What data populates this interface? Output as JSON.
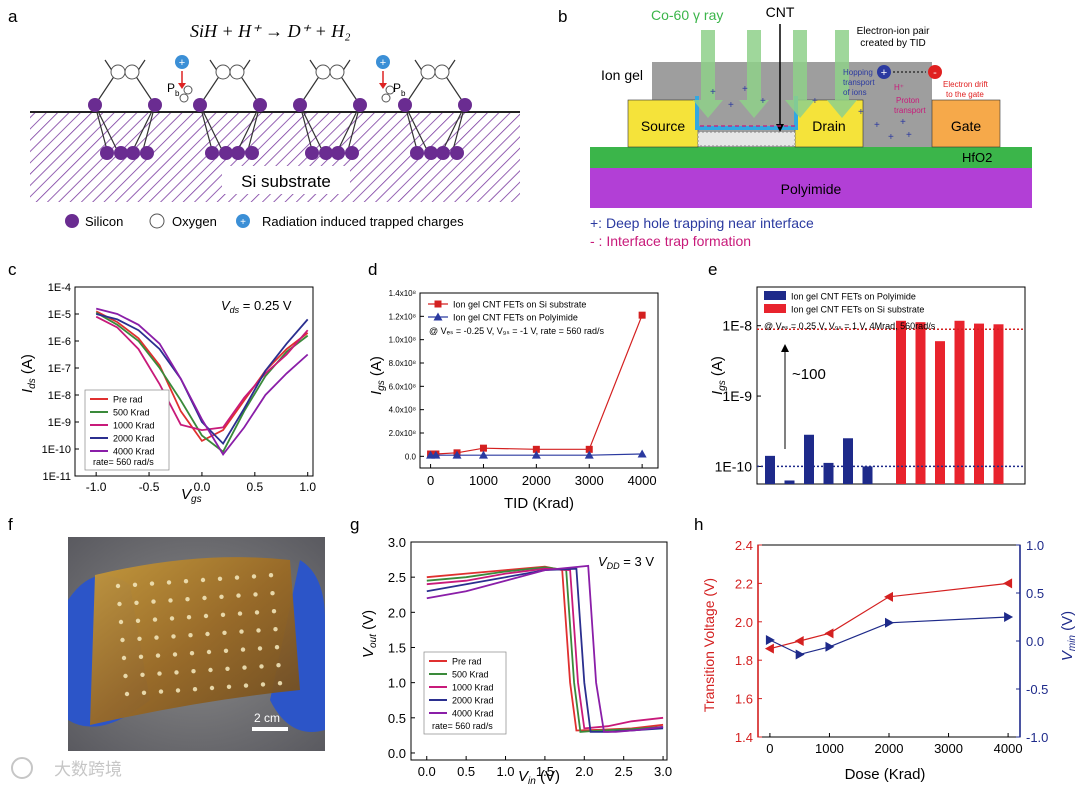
{
  "panels": {
    "a": {
      "letter": "a",
      "equation": "SiH + H⁺ → D⁺ + H₂",
      "pb_label": "P",
      "pb_sub": "b",
      "substrate_label": "Si substrate",
      "legend": [
        "Silicon",
        "Oxygen",
        "Radiation induced trapped charges"
      ],
      "colors": {
        "silicon": "#6a2c91",
        "oxygen": "#ffffff",
        "charge": "#3b8fd6"
      }
    },
    "b": {
      "letter": "b",
      "co60": "Co-60 γ ray",
      "cnt": "CNT",
      "pair_line1": "Electron-ion pair",
      "pair_line2": "created by TID",
      "ion_gel": "Ion gel",
      "source": "Source",
      "drain": "Drain",
      "gate": "Gate",
      "hfo2": "HfO2",
      "polyimide": "Polyimide",
      "hopping1": "Hopping",
      "hopping2": "transport",
      "hopping3": "of ions",
      "hplus": "H⁺",
      "proton1": "Proton",
      "proton2": "transport",
      "drift1": "Electron drift",
      "drift2": "to the gate",
      "note1": "+: Deep hole trapping near interface",
      "note2": "- : Interface trap formation",
      "colors": {
        "gel": "#9e9e9e",
        "source": "#f5e33a",
        "gate": "#f6a94a",
        "hfo2": "#3bb54a",
        "polyimide": "#b23fd6",
        "ray": "#8fd18a"
      }
    },
    "c": {
      "letter": "c",
      "annotation": "V",
      "annotation_sub": "ds",
      "annotation_tail": " = 0.25 V",
      "ylabel": "I",
      "ylabel_sub": "ds",
      "ylabel_tail": " (A)",
      "xlabel": "V",
      "xlabel_sub": "gs",
      "yticks": [
        "1E-4",
        "1E-5",
        "1E-6",
        "1E-7",
        "1E-8",
        "1E-9",
        "1E-10",
        "1E-11"
      ],
      "xticks": [
        "-1.0",
        "-0.5",
        "0.0",
        "0.5",
        "1.0"
      ],
      "legend_note": "rate= 560 rad/s"
    },
    "d": {
      "letter": "d",
      "ylabel": "I",
      "ylabel_sub": "gs",
      "ylabel_tail": " (A)",
      "xlabel": "TID (Krad)",
      "yticks": [
        "0.0",
        "2.0x10⁸",
        "4.0x10⁸",
        "6.0x10⁸",
        "8.0x10⁸",
        "1.0x10⁸",
        "1.2x10⁸",
        "1.4x10⁸"
      ],
      "xticks": [
        "0",
        "1000",
        "2000",
        "3000",
        "4000"
      ],
      "condition": "@ Vₑₛ = -0.25 V, V₉ₛ = -1 V,  rate = 560 rad/s"
    },
    "e": {
      "letter": "e",
      "ylabel": "I",
      "ylabel_sub": "gs",
      "ylabel_tail": " (A)",
      "yticks": [
        "1E-8",
        "1E-9",
        "1E-10"
      ],
      "annotation": "~100",
      "condition": "@ Vₑₛ = 0.25 V, V₉ₛ = 1 V, 4Mrad, 560rad/s"
    },
    "f": {
      "letter": "f",
      "scale": "2 cm",
      "watermark": "大数跨境"
    },
    "g": {
      "letter": "g",
      "annotation": "V",
      "annotation_sub": "DD",
      "annotation_tail": " = 3 V",
      "ylabel": "V",
      "ylabel_sub": "out",
      "ylabel_tail": " (V)",
      "xlabel": "V",
      "xlabel_sub": "in",
      "xlabel_tail": " (V)",
      "yticks": [
        "0.0",
        "0.5",
        "1.0",
        "1.5",
        "2.0",
        "2.5",
        "3.0"
      ],
      "xticks": [
        "0.0",
        "0.5",
        "1.0",
        "1.5",
        "2.0",
        "2.5",
        "3.0"
      ],
      "legend_note": "rate= 560 rad/s"
    },
    "h": {
      "letter": "h",
      "ylabel_left": "Transition Voltage (V)",
      "ylabel_right": "V",
      "ylabel_right_sub": "min",
      "ylabel_right_tail": " (V)",
      "xlabel": "Dose (Krad)",
      "yticks_left": [
        "1.4",
        "1.6",
        "1.8",
        "2.0",
        "2.2",
        "2.4"
      ],
      "yticks_right": [
        "-1.0",
        "-0.5",
        "0.0",
        "0.5",
        "1.0"
      ],
      "xticks": [
        "0",
        "1000",
        "2000",
        "3000",
        "4000"
      ]
    }
  },
  "chart_data": [
    {
      "panel": "c",
      "type": "line",
      "xlabel": "Vgs",
      "ylabel": "Ids (A)",
      "yscale": "log",
      "xlim": [
        -1.2,
        1.05
      ],
      "ylim_log10": [
        -11,
        -4
      ],
      "x": [
        -1.0,
        -0.8,
        -0.6,
        -0.4,
        -0.2,
        0.0,
        0.2,
        0.4,
        0.6,
        0.8,
        1.0
      ],
      "series": [
        {
          "name": "Pre rad",
          "color": "#e03030",
          "log10_y": [
            -4.9,
            -5.3,
            -5.9,
            -6.9,
            -8.6,
            -9.7,
            -9.3,
            -8.2,
            -7.1,
            -6.3,
            -5.7
          ]
        },
        {
          "name": "500 Krad",
          "color": "#3a8a3a",
          "log10_y": [
            -4.95,
            -5.4,
            -6.0,
            -7.0,
            -8.2,
            -9.5,
            -10.1,
            -8.6,
            -7.3,
            -6.4,
            -5.8
          ]
        },
        {
          "name": "1000 Krad",
          "color": "#c81a7a",
          "log10_y": [
            -5.1,
            -5.5,
            -6.3,
            -7.6,
            -9.1,
            -9.3,
            -9.2,
            -8.1,
            -7.2,
            -6.5,
            -5.6
          ]
        },
        {
          "name": "2000 Krad",
          "color": "#2b2f8f",
          "log10_y": [
            -5.0,
            -5.2,
            -5.6,
            -6.3,
            -7.4,
            -9.0,
            -9.8,
            -8.5,
            -7.1,
            -6.1,
            -5.2
          ]
        },
        {
          "name": "4000 Krad",
          "color": "#8a1ea8",
          "log10_y": [
            -4.8,
            -5.0,
            -5.4,
            -6.1,
            -7.4,
            -8.9,
            -10.2,
            -9.2,
            -8.0,
            -7.2,
            -6.5
          ]
        }
      ],
      "legend": "lower-left"
    },
    {
      "panel": "d",
      "type": "line",
      "xlabel": "TID (Krad)",
      "ylabel": "Igs (A)",
      "xlim": [
        -200,
        4300
      ],
      "ylim": [
        -0.1,
        1.4
      ],
      "y_unit_note": "tick labels printed as 0.0 ... 1.4x10^8",
      "series": [
        {
          "name": "Ion gel CNT FETs on Si substrate",
          "color": "#d42020",
          "marker": "square",
          "x": [
            0,
            100,
            500,
            1000,
            2000,
            3000,
            4000
          ],
          "y": [
            0.02,
            0.02,
            0.03,
            0.07,
            0.06,
            0.06,
            1.21
          ]
        },
        {
          "name": "Ion gel CNT FETs on Polyimide",
          "color": "#2b3aa0",
          "marker": "triangle",
          "x": [
            0,
            100,
            500,
            1000,
            2000,
            3000,
            4000
          ],
          "y": [
            0.01,
            0.01,
            0.01,
            0.01,
            0.01,
            0.01,
            0.02
          ]
        }
      ],
      "legend": "top-left"
    },
    {
      "panel": "e",
      "type": "bar",
      "ylabel": "Igs (A)",
      "yscale": "log",
      "ylim_log10": [
        -10.25,
        -7.45
      ],
      "series": [
        {
          "name": "Ion gel CNT FETs on Polyimide",
          "color": "#1e2a8a",
          "log10_y": [
            -9.85,
            -10.2,
            -9.55,
            -9.95,
            -9.6,
            -10.0
          ]
        },
        {
          "name": "Ion gel CNT FETs on Si substrate",
          "color": "#e8232d",
          "log10_y": [
            -7.93,
            -7.95,
            -8.22,
            -7.93,
            -7.97,
            -7.98
          ]
        }
      ],
      "reference_lines_log10": [
        -8.05,
        -10.0
      ],
      "legend": "top-left"
    },
    {
      "panel": "g",
      "type": "line",
      "xlabel": "Vin (V)",
      "ylabel": "Vout (V)",
      "xlim": [
        -0.2,
        3.05
      ],
      "ylim": [
        -0.1,
        3.0
      ],
      "series": [
        {
          "name": "Pre rad",
          "color": "#e03030",
          "x": [
            0,
            0.5,
            1.0,
            1.5,
            1.72,
            1.82,
            1.9,
            2.2,
            2.6,
            3.0
          ],
          "y": [
            2.5,
            2.55,
            2.6,
            2.65,
            2.6,
            1.0,
            0.32,
            0.33,
            0.35,
            0.4
          ]
        },
        {
          "name": "500 Krad",
          "color": "#3a8a3a",
          "x": [
            0,
            0.5,
            1.0,
            1.5,
            1.77,
            1.87,
            1.95,
            2.2,
            2.6,
            3.0
          ],
          "y": [
            2.45,
            2.5,
            2.58,
            2.64,
            2.6,
            1.0,
            0.3,
            0.32,
            0.34,
            0.37
          ]
        },
        {
          "name": "1000 Krad",
          "color": "#c81a7a",
          "x": [
            0,
            0.5,
            1.0,
            1.5,
            1.82,
            1.92,
            2.0,
            2.3,
            2.6,
            3.0
          ],
          "y": [
            2.4,
            2.45,
            2.55,
            2.62,
            2.6,
            1.0,
            0.35,
            0.38,
            0.45,
            0.5
          ]
        },
        {
          "name": "2000 Krad",
          "color": "#2b2f8f",
          "x": [
            0,
            0.5,
            1.0,
            1.5,
            1.9,
            2.0,
            2.08,
            2.3,
            2.6,
            3.0
          ],
          "y": [
            2.3,
            2.4,
            2.5,
            2.6,
            2.62,
            1.0,
            0.3,
            0.3,
            0.32,
            0.35
          ]
        },
        {
          "name": "4000 Krad",
          "color": "#8a1ea8",
          "x": [
            0,
            0.5,
            1.0,
            1.5,
            2.05,
            2.15,
            2.25,
            2.4,
            2.7,
            3.0
          ],
          "y": [
            2.2,
            2.3,
            2.45,
            2.6,
            2.66,
            1.0,
            0.3,
            0.3,
            0.33,
            0.37
          ]
        }
      ],
      "legend": "lower-left"
    },
    {
      "panel": "h",
      "type": "line",
      "xlabel": "Dose (Krad)",
      "xlim": [
        -200,
        4200
      ],
      "series": [
        {
          "name": "Transition Voltage",
          "axis": "left",
          "color": "#d42020",
          "marker": "triangle-left",
          "x": [
            0,
            500,
            1000,
            2000,
            4000
          ],
          "y": [
            1.86,
            1.9,
            1.94,
            2.13,
            2.2
          ],
          "ylim": [
            1.4,
            2.4
          ]
        },
        {
          "name": "Vmin",
          "axis": "right",
          "color": "#1e2a8a",
          "marker": "triangle-right",
          "x": [
            0,
            500,
            1000,
            2000,
            4000
          ],
          "y": [
            0.01,
            -0.14,
            -0.06,
            0.19,
            0.25
          ],
          "ylim": [
            -1.0,
            1.0
          ]
        }
      ]
    }
  ]
}
